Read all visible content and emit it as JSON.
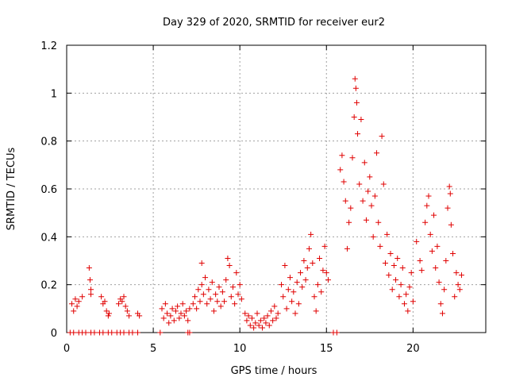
{
  "chart_data": {
    "type": "scatter",
    "title": "Day 329 of 2020, SRMTID for receiver eur2",
    "xlabel": "GPS time / hours",
    "ylabel": "SRMTID / TECUs",
    "xlim": [
      0,
      24.2
    ],
    "ylim": [
      0,
      1.2
    ],
    "xticks": [
      0,
      5,
      10,
      15,
      20
    ],
    "xtick_labels": [
      "0",
      "5",
      "10",
      "15",
      "20"
    ],
    "yticks": [
      0,
      0.2,
      0.4,
      0.6,
      0.8,
      1,
      1.2
    ],
    "ytick_labels": [
      "0",
      "0.2",
      "0.4",
      "0.6",
      "0.8",
      "1",
      "1.2"
    ],
    "grid": true,
    "marker": "+",
    "color": "#e00000",
    "series": [
      {
        "name": "eur2",
        "points": [
          [
            0.2,
            0
          ],
          [
            0.4,
            0
          ],
          [
            0.7,
            0
          ],
          [
            0.9,
            0
          ],
          [
            1.1,
            0
          ],
          [
            1.4,
            0
          ],
          [
            1.6,
            0
          ],
          [
            1.9,
            0
          ],
          [
            2.1,
            0
          ],
          [
            2.4,
            0
          ],
          [
            2.6,
            0
          ],
          [
            2.9,
            0
          ],
          [
            3.1,
            0
          ],
          [
            3.3,
            0
          ],
          [
            3.6,
            0
          ],
          [
            3.8,
            0
          ],
          [
            4.1,
            0
          ],
          [
            5.4,
            0
          ],
          [
            7.0,
            0
          ],
          [
            7.1,
            0
          ],
          [
            15.4,
            0
          ],
          [
            15.6,
            0
          ],
          [
            0.3,
            0.12
          ],
          [
            0.4,
            0.09
          ],
          [
            0.5,
            0.14
          ],
          [
            0.6,
            0.11
          ],
          [
            0.7,
            0.13
          ],
          [
            0.9,
            0.15
          ],
          [
            1.3,
            0.27
          ],
          [
            1.35,
            0.22
          ],
          [
            1.4,
            0.18
          ],
          [
            1.4,
            0.16
          ],
          [
            2.0,
            0.15
          ],
          [
            2.1,
            0.12
          ],
          [
            2.2,
            0.13
          ],
          [
            2.3,
            0.09
          ],
          [
            2.4,
            0.07
          ],
          [
            2.45,
            0.08
          ],
          [
            3.0,
            0.12
          ],
          [
            3.1,
            0.14
          ],
          [
            3.2,
            0.13
          ],
          [
            3.3,
            0.15
          ],
          [
            3.4,
            0.11
          ],
          [
            3.5,
            0.09
          ],
          [
            3.6,
            0.07
          ],
          [
            4.1,
            0.08
          ],
          [
            4.2,
            0.07
          ],
          [
            5.5,
            0.1
          ],
          [
            5.6,
            0.06
          ],
          [
            5.7,
            0.12
          ],
          [
            5.8,
            0.08
          ],
          [
            5.9,
            0.04
          ],
          [
            6.0,
            0.07
          ],
          [
            6.1,
            0.1
          ],
          [
            6.2,
            0.05
          ],
          [
            6.3,
            0.09
          ],
          [
            6.4,
            0.11
          ],
          [
            6.5,
            0.06
          ],
          [
            6.6,
            0.08
          ],
          [
            6.7,
            0.12
          ],
          [
            6.8,
            0.07
          ],
          [
            6.9,
            0.09
          ],
          [
            7.0,
            0.05
          ],
          [
            7.1,
            0.1
          ],
          [
            7.3,
            0.12
          ],
          [
            7.4,
            0.15
          ],
          [
            7.5,
            0.1
          ],
          [
            7.6,
            0.18
          ],
          [
            7.7,
            0.13
          ],
          [
            7.8,
            0.2
          ],
          [
            7.8,
            0.29
          ],
          [
            7.9,
            0.16
          ],
          [
            8.0,
            0.23
          ],
          [
            8.1,
            0.12
          ],
          [
            8.2,
            0.18
          ],
          [
            8.3,
            0.14
          ],
          [
            8.4,
            0.21
          ],
          [
            8.5,
            0.09
          ],
          [
            8.6,
            0.16
          ],
          [
            8.7,
            0.13
          ],
          [
            8.8,
            0.19
          ],
          [
            8.9,
            0.11
          ],
          [
            9.0,
            0.17
          ],
          [
            9.1,
            0.13
          ],
          [
            9.2,
            0.22
          ],
          [
            9.3,
            0.31
          ],
          [
            9.4,
            0.28
          ],
          [
            9.5,
            0.15
          ],
          [
            9.6,
            0.19
          ],
          [
            9.7,
            0.12
          ],
          [
            9.8,
            0.25
          ],
          [
            9.9,
            0.16
          ],
          [
            10.0,
            0.2
          ],
          [
            10.1,
            0.14
          ],
          [
            10.3,
            0.08
          ],
          [
            10.4,
            0.05
          ],
          [
            10.5,
            0.07
          ],
          [
            10.6,
            0.03
          ],
          [
            10.7,
            0.06
          ],
          [
            10.8,
            0.02
          ],
          [
            10.9,
            0.04
          ],
          [
            11.0,
            0.08
          ],
          [
            11.1,
            0.03
          ],
          [
            11.2,
            0.05
          ],
          [
            11.3,
            0.02
          ],
          [
            11.4,
            0.06
          ],
          [
            11.5,
            0.04
          ],
          [
            11.6,
            0.07
          ],
          [
            11.7,
            0.03
          ],
          [
            11.8,
            0.09
          ],
          [
            11.9,
            0.05
          ],
          [
            12.0,
            0.11
          ],
          [
            12.1,
            0.06
          ],
          [
            12.2,
            0.08
          ],
          [
            12.4,
            0.2
          ],
          [
            12.5,
            0.15
          ],
          [
            12.6,
            0.28
          ],
          [
            12.7,
            0.1
          ],
          [
            12.8,
            0.18
          ],
          [
            12.9,
            0.23
          ],
          [
            13.0,
            0.13
          ],
          [
            13.1,
            0.17
          ],
          [
            13.2,
            0.08
          ],
          [
            13.3,
            0.21
          ],
          [
            13.4,
            0.12
          ],
          [
            13.5,
            0.25
          ],
          [
            13.6,
            0.19
          ],
          [
            13.7,
            0.3
          ],
          [
            13.8,
            0.22
          ],
          [
            13.9,
            0.27
          ],
          [
            14.0,
            0.35
          ],
          [
            14.1,
            0.41
          ],
          [
            14.2,
            0.29
          ],
          [
            14.3,
            0.15
          ],
          [
            14.4,
            0.09
          ],
          [
            14.5,
            0.2
          ],
          [
            14.6,
            0.31
          ],
          [
            14.7,
            0.17
          ],
          [
            14.8,
            0.26
          ],
          [
            14.9,
            0.36
          ],
          [
            15.0,
            0.25
          ],
          [
            15.1,
            0.22
          ],
          [
            15.8,
            0.68
          ],
          [
            15.9,
            0.74
          ],
          [
            16.0,
            0.63
          ],
          [
            16.1,
            0.55
          ],
          [
            16.2,
            0.35
          ],
          [
            16.3,
            0.46
          ],
          [
            16.4,
            0.52
          ],
          [
            16.5,
            0.73
          ],
          [
            16.6,
            0.9
          ],
          [
            16.65,
            1.06
          ],
          [
            16.7,
            1.02
          ],
          [
            16.75,
            0.96
          ],
          [
            16.8,
            0.83
          ],
          [
            16.9,
            0.62
          ],
          [
            17.0,
            0.89
          ],
          [
            17.1,
            0.55
          ],
          [
            17.2,
            0.71
          ],
          [
            17.3,
            0.47
          ],
          [
            17.4,
            0.59
          ],
          [
            17.5,
            0.65
          ],
          [
            17.6,
            0.53
          ],
          [
            17.7,
            0.4
          ],
          [
            17.8,
            0.57
          ],
          [
            17.9,
            0.75
          ],
          [
            18.0,
            0.46
          ],
          [
            18.1,
            0.36
          ],
          [
            18.2,
            0.82
          ],
          [
            18.3,
            0.62
          ],
          [
            18.4,
            0.29
          ],
          [
            18.5,
            0.41
          ],
          [
            18.6,
            0.24
          ],
          [
            18.7,
            0.33
          ],
          [
            18.8,
            0.18
          ],
          [
            18.9,
            0.28
          ],
          [
            19.0,
            0.22
          ],
          [
            19.1,
            0.31
          ],
          [
            19.2,
            0.15
          ],
          [
            19.3,
            0.2
          ],
          [
            19.4,
            0.27
          ],
          [
            19.5,
            0.12
          ],
          [
            19.6,
            0.16
          ],
          [
            19.7,
            0.09
          ],
          [
            19.8,
            0.19
          ],
          [
            19.9,
            0.25
          ],
          [
            20.0,
            0.13
          ],
          [
            20.2,
            0.38
          ],
          [
            20.4,
            0.3
          ],
          [
            20.5,
            0.26
          ],
          [
            20.7,
            0.46
          ],
          [
            20.8,
            0.53
          ],
          [
            20.9,
            0.57
          ],
          [
            21.0,
            0.41
          ],
          [
            21.1,
            0.34
          ],
          [
            21.2,
            0.49
          ],
          [
            21.3,
            0.27
          ],
          [
            21.4,
            0.36
          ],
          [
            21.5,
            0.21
          ],
          [
            21.6,
            0.12
          ],
          [
            21.7,
            0.08
          ],
          [
            21.8,
            0.18
          ],
          [
            21.9,
            0.3
          ],
          [
            22.0,
            0.52
          ],
          [
            22.1,
            0.61
          ],
          [
            22.15,
            0.58
          ],
          [
            22.2,
            0.45
          ],
          [
            22.3,
            0.33
          ],
          [
            22.4,
            0.15
          ],
          [
            22.5,
            0.25
          ],
          [
            22.6,
            0.2
          ],
          [
            22.7,
            0.18
          ],
          [
            22.8,
            0.24
          ]
        ]
      }
    ]
  }
}
